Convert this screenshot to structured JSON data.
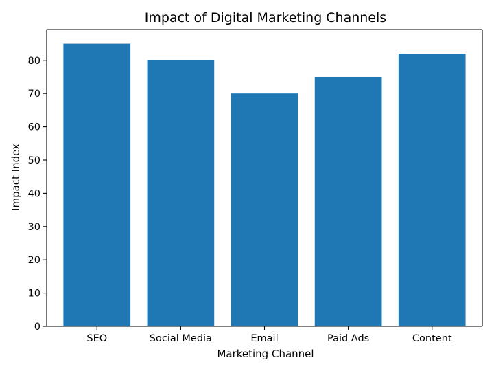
{
  "chart_data": {
    "type": "bar",
    "title": "Impact of Digital Marketing Channels",
    "xlabel": "Marketing Channel",
    "ylabel": "Impact Index",
    "categories": [
      "SEO",
      "Social Media",
      "Email",
      "Paid Ads",
      "Content"
    ],
    "values": [
      85,
      80,
      70,
      75,
      82
    ],
    "ylim": [
      0,
      89.25
    ],
    "yticks": [
      0,
      10,
      20,
      30,
      40,
      50,
      60,
      70,
      80
    ],
    "ytick_labels": [
      "0",
      "10",
      "20",
      "30",
      "40",
      "50",
      "60",
      "70",
      "80"
    ],
    "bar_color": "#1f77b4",
    "grid": false,
    "legend": "none"
  }
}
